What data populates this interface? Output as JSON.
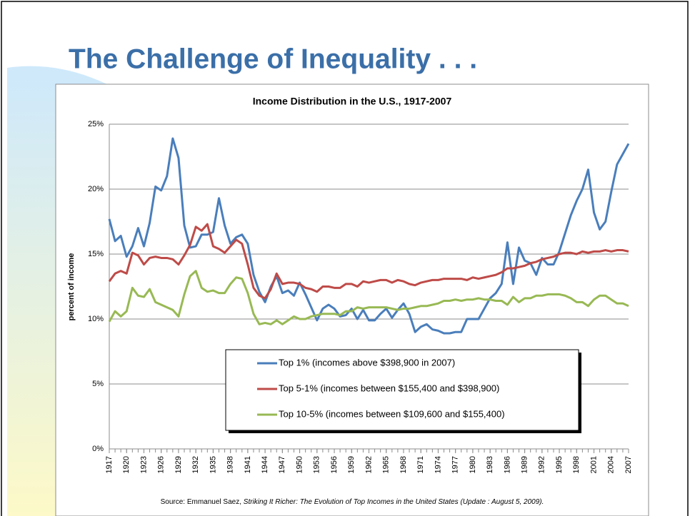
{
  "slide_title": "The Challenge of Inequality . . .",
  "chart_data": {
    "type": "line",
    "title": "Income Distribution in the U.S., 1917-2007",
    "ylabel": "percent of income",
    "source": "Source: Emmanuel Saez, ",
    "source_title": "Striking It Richer: The Evolution of Top Incomes in the United States (Update : August 5, 2009).",
    "x": [
      1917,
      1918,
      1919,
      1920,
      1921,
      1922,
      1923,
      1924,
      1925,
      1926,
      1927,
      1928,
      1929,
      1930,
      1931,
      1932,
      1933,
      1934,
      1935,
      1936,
      1937,
      1938,
      1939,
      1940,
      1941,
      1942,
      1943,
      1944,
      1945,
      1946,
      1947,
      1948,
      1949,
      1950,
      1951,
      1952,
      1953,
      1954,
      1955,
      1956,
      1957,
      1958,
      1959,
      1960,
      1961,
      1962,
      1963,
      1964,
      1965,
      1966,
      1967,
      1968,
      1969,
      1970,
      1971,
      1972,
      1973,
      1974,
      1975,
      1976,
      1977,
      1978,
      1979,
      1980,
      1981,
      1982,
      1983,
      1984,
      1985,
      1986,
      1987,
      1988,
      1989,
      1990,
      1991,
      1992,
      1993,
      1994,
      1995,
      1996,
      1997,
      1998,
      1999,
      2000,
      2001,
      2002,
      2003,
      2004,
      2005,
      2006,
      2007
    ],
    "xlim": [
      1917,
      2007
    ],
    "xticks": [
      1917,
      1920,
      1923,
      1926,
      1929,
      1932,
      1935,
      1938,
      1941,
      1944,
      1947,
      1950,
      1953,
      1956,
      1959,
      1962,
      1965,
      1968,
      1971,
      1974,
      1977,
      1980,
      1983,
      1986,
      1989,
      1992,
      1995,
      1998,
      2001,
      2004,
      2007
    ],
    "ylim": [
      0,
      25
    ],
    "yticks": [
      {
        "value": 0,
        "label": "0%"
      },
      {
        "value": 5,
        "label": "5%"
      },
      {
        "value": 10,
        "label": "10%"
      },
      {
        "value": 15,
        "label": "15%"
      },
      {
        "value": 20,
        "label": "20%"
      },
      {
        "value": 25,
        "label": "25%"
      }
    ],
    "grid": true,
    "legend": "bottom",
    "series": [
      {
        "name": "Top 1% (incomes above $398,900 in 2007)",
        "color": "#4a7ebb",
        "values": [
          17.7,
          16.0,
          16.4,
          14.8,
          15.6,
          17.0,
          15.6,
          17.4,
          20.2,
          19.9,
          21.0,
          23.9,
          22.4,
          17.2,
          15.5,
          15.6,
          16.5,
          16.5,
          16.7,
          19.3,
          17.2,
          15.8,
          16.3,
          16.5,
          15.8,
          13.4,
          12.1,
          11.3,
          12.5,
          13.3,
          12.0,
          12.2,
          11.8,
          12.8,
          11.9,
          10.9,
          9.9,
          10.8,
          11.1,
          10.8,
          10.2,
          10.3,
          10.8,
          10.0,
          10.7,
          9.9,
          9.9,
          10.4,
          10.8,
          10.1,
          10.7,
          11.2,
          10.4,
          9.0,
          9.4,
          9.6,
          9.2,
          9.1,
          8.9,
          8.9,
          9.0,
          9.0,
          10.0,
          10.0,
          10.0,
          10.8,
          11.6,
          12.0,
          12.7,
          15.9,
          12.7,
          15.5,
          14.5,
          14.3,
          13.4,
          14.7,
          14.2,
          14.2,
          15.2,
          16.6,
          18.0,
          19.1,
          20.0,
          21.5,
          18.2,
          16.9,
          17.5,
          19.8,
          21.9,
          22.7,
          23.5
        ]
      },
      {
        "name": "Top 5-1% (incomes between $155,400 and $398,900)",
        "color": "#be4b48",
        "values": [
          12.9,
          13.5,
          13.7,
          13.5,
          15.1,
          14.9,
          14.2,
          14.7,
          14.8,
          14.7,
          14.7,
          14.6,
          14.2,
          14.9,
          15.7,
          17.1,
          16.8,
          17.3,
          15.6,
          15.4,
          15.1,
          15.6,
          16.1,
          15.8,
          14.2,
          12.4,
          11.8,
          11.6,
          12.3,
          13.5,
          12.7,
          12.8,
          12.8,
          12.7,
          12.4,
          12.3,
          12.1,
          12.5,
          12.5,
          12.4,
          12.4,
          12.7,
          12.7,
          12.5,
          12.9,
          12.8,
          12.9,
          13.0,
          13.0,
          12.8,
          13.0,
          12.9,
          12.7,
          12.6,
          12.8,
          12.9,
          13.0,
          13.0,
          13.1,
          13.1,
          13.1,
          13.1,
          13.0,
          13.2,
          13.1,
          13.2,
          13.3,
          13.4,
          13.6,
          13.9,
          13.9,
          14.0,
          14.1,
          14.3,
          14.4,
          14.6,
          14.7,
          14.8,
          15.0,
          15.1,
          15.1,
          15.0,
          15.2,
          15.1,
          15.2,
          15.2,
          15.3,
          15.2,
          15.3,
          15.3,
          15.2
        ]
      },
      {
        "name": "Top 10-5% (incomes between $109,600 and $155,400)",
        "color": "#98b954",
        "values": [
          9.8,
          10.6,
          10.2,
          10.6,
          12.4,
          11.8,
          11.7,
          12.3,
          11.3,
          11.1,
          10.9,
          10.7,
          10.2,
          11.9,
          13.3,
          13.7,
          12.4,
          12.1,
          12.2,
          12.0,
          12.0,
          12.7,
          13.2,
          13.1,
          12.0,
          10.4,
          9.6,
          9.7,
          9.6,
          9.9,
          9.6,
          9.9,
          10.2,
          10.0,
          10.0,
          10.2,
          10.3,
          10.4,
          10.4,
          10.4,
          10.3,
          10.6,
          10.6,
          10.9,
          10.8,
          10.9,
          10.9,
          10.9,
          10.9,
          10.8,
          10.7,
          10.8,
          10.8,
          10.9,
          11.0,
          11.0,
          11.1,
          11.2,
          11.4,
          11.4,
          11.5,
          11.4,
          11.5,
          11.5,
          11.6,
          11.5,
          11.5,
          11.4,
          11.4,
          11.1,
          11.7,
          11.3,
          11.6,
          11.6,
          11.8,
          11.8,
          11.9,
          11.9,
          11.9,
          11.8,
          11.6,
          11.3,
          11.3,
          11.0,
          11.5,
          11.8,
          11.8,
          11.5,
          11.2,
          11.2,
          11.0
        ]
      }
    ]
  }
}
